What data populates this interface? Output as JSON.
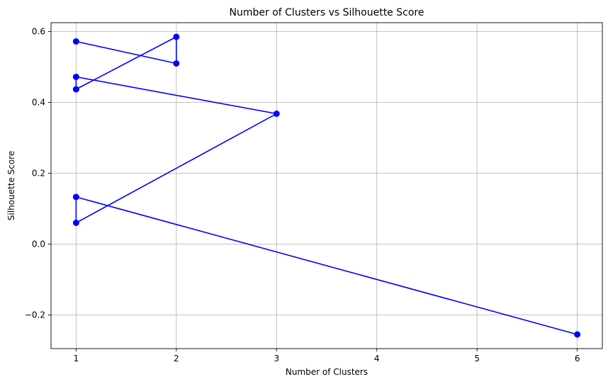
{
  "chart_data": {
    "type": "line",
    "title": "Number of Clusters vs Silhouette Score",
    "xlabel": "Number of Clusters",
    "ylabel": "Silhouette Score",
    "xlim": [
      0.75,
      6.25
    ],
    "ylim": [
      -0.295,
      0.625
    ],
    "xticks": [
      1,
      2,
      3,
      4,
      5,
      6
    ],
    "yticks": [
      -0.2,
      0.0,
      0.2,
      0.4,
      0.6
    ],
    "ytick_labels": [
      "−0.2",
      "0.0",
      "0.2",
      "0.4",
      "0.6"
    ],
    "grid": true,
    "series": [
      {
        "color": "#0000ff",
        "marker": "circle",
        "x": [
          1,
          2,
          2,
          1,
          1,
          3,
          1,
          1,
          6
        ],
        "y": [
          0.572,
          0.51,
          0.585,
          0.437,
          0.472,
          0.368,
          0.06,
          0.133,
          -0.255
        ]
      }
    ]
  }
}
